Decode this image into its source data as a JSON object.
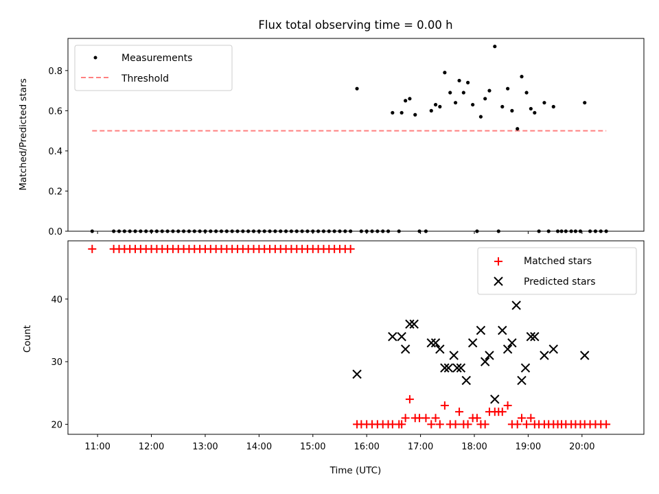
{
  "chart_data": [
    {
      "type": "scatter",
      "title": "Flux total observing time = 0.00 h",
      "ylabel": "Matched/Predicted stars",
      "xlabel": "",
      "xlim": [
        10.45,
        21.15
      ],
      "ylim": [
        0,
        0.96
      ],
      "yticks": [
        "0.0",
        "0.2",
        "0.4",
        "0.6",
        "0.8"
      ],
      "legend_position": "upper-left",
      "threshold": {
        "name": "Threshold",
        "value": 0.5,
        "x_start": 10.9,
        "x_end": 20.45,
        "color": "#ff7f7f"
      },
      "series": [
        {
          "name": "Measurements",
          "color": "#000000",
          "points": [
            [
              10.9,
              0
            ],
            [
              11.3,
              0
            ],
            [
              11.4,
              0
            ],
            [
              11.5,
              0
            ],
            [
              11.6,
              0
            ],
            [
              11.7,
              0
            ],
            [
              11.8,
              0
            ],
            [
              11.9,
              0
            ],
            [
              12.0,
              0
            ],
            [
              12.1,
              0
            ],
            [
              12.2,
              0
            ],
            [
              12.3,
              0
            ],
            [
              12.4,
              0
            ],
            [
              12.5,
              0
            ],
            [
              12.6,
              0
            ],
            [
              12.7,
              0
            ],
            [
              12.8,
              0
            ],
            [
              12.9,
              0
            ],
            [
              13.0,
              0
            ],
            [
              13.1,
              0
            ],
            [
              13.2,
              0
            ],
            [
              13.3,
              0
            ],
            [
              13.4,
              0
            ],
            [
              13.5,
              0
            ],
            [
              13.6,
              0
            ],
            [
              13.7,
              0
            ],
            [
              13.8,
              0
            ],
            [
              13.9,
              0
            ],
            [
              14.0,
              0
            ],
            [
              14.1,
              0
            ],
            [
              14.2,
              0
            ],
            [
              14.3,
              0
            ],
            [
              14.4,
              0
            ],
            [
              14.5,
              0
            ],
            [
              14.6,
              0
            ],
            [
              14.7,
              0
            ],
            [
              14.8,
              0
            ],
            [
              14.9,
              0
            ],
            [
              15.0,
              0
            ],
            [
              15.1,
              0
            ],
            [
              15.2,
              0
            ],
            [
              15.3,
              0
            ],
            [
              15.4,
              0
            ],
            [
              15.5,
              0
            ],
            [
              15.6,
              0
            ],
            [
              15.7,
              0
            ],
            [
              15.82,
              0.71
            ],
            [
              15.9,
              0
            ],
            [
              16.0,
              0
            ],
            [
              16.1,
              0
            ],
            [
              16.2,
              0
            ],
            [
              16.3,
              0
            ],
            [
              16.4,
              0
            ],
            [
              16.48,
              0.59
            ],
            [
              16.6,
              0
            ],
            [
              16.65,
              0.59
            ],
            [
              16.72,
              0.65
            ],
            [
              16.8,
              0.66
            ],
            [
              16.9,
              0.58
            ],
            [
              16.98,
              0
            ],
            [
              17.1,
              0
            ],
            [
              17.2,
              0.6
            ],
            [
              17.28,
              0.63
            ],
            [
              17.36,
              0.62
            ],
            [
              17.45,
              0.79
            ],
            [
              17.55,
              0.69
            ],
            [
              17.65,
              0.64
            ],
            [
              17.72,
              0.75
            ],
            [
              17.8,
              0.69
            ],
            [
              17.88,
              0.74
            ],
            [
              17.97,
              0.63
            ],
            [
              18.05,
              0
            ],
            [
              18.12,
              0.57
            ],
            [
              18.2,
              0.66
            ],
            [
              18.28,
              0.7
            ],
            [
              18.38,
              0.92
            ],
            [
              18.45,
              0
            ],
            [
              18.52,
              0.62
            ],
            [
              18.62,
              0.71
            ],
            [
              18.7,
              0.6
            ],
            [
              18.8,
              0.51
            ],
            [
              18.88,
              0.77
            ],
            [
              18.97,
              0.69
            ],
            [
              19.05,
              0.61
            ],
            [
              19.12,
              0.59
            ],
            [
              19.2,
              0
            ],
            [
              19.3,
              0.64
            ],
            [
              19.38,
              0
            ],
            [
              19.47,
              0.62
            ],
            [
              19.55,
              0
            ],
            [
              19.62,
              0
            ],
            [
              19.7,
              0
            ],
            [
              19.8,
              0
            ],
            [
              19.88,
              0
            ],
            [
              19.97,
              0
            ],
            [
              20.05,
              0.64
            ],
            [
              20.15,
              0
            ],
            [
              20.25,
              0
            ],
            [
              20.35,
              0
            ],
            [
              20.45,
              0
            ]
          ]
        }
      ]
    },
    {
      "type": "scatter",
      "title": "",
      "xlabel": "Time (UTC)",
      "ylabel": "Count",
      "xlim": [
        10.45,
        21.15
      ],
      "ylim": [
        18.4,
        49.3
      ],
      "yticks": [
        "20",
        "30",
        "40"
      ],
      "xticks": [
        "11:00",
        "12:00",
        "13:00",
        "14:00",
        "15:00",
        "16:00",
        "17:00",
        "18:00",
        "19:00",
        "20:00"
      ],
      "legend_position": "upper-right",
      "series": [
        {
          "name": "Matched stars",
          "color": "#ff0000",
          "marker": "plus",
          "points": [
            [
              10.9,
              48
            ],
            [
              11.3,
              48
            ],
            [
              11.4,
              48
            ],
            [
              11.5,
              48
            ],
            [
              11.6,
              48
            ],
            [
              11.7,
              48
            ],
            [
              11.8,
              48
            ],
            [
              11.9,
              48
            ],
            [
              12.0,
              48
            ],
            [
              12.1,
              48
            ],
            [
              12.2,
              48
            ],
            [
              12.3,
              48
            ],
            [
              12.4,
              48
            ],
            [
              12.5,
              48
            ],
            [
              12.6,
              48
            ],
            [
              12.7,
              48
            ],
            [
              12.8,
              48
            ],
            [
              12.9,
              48
            ],
            [
              13.0,
              48
            ],
            [
              13.1,
              48
            ],
            [
              13.2,
              48
            ],
            [
              13.3,
              48
            ],
            [
              13.4,
              48
            ],
            [
              13.5,
              48
            ],
            [
              13.6,
              48
            ],
            [
              13.7,
              48
            ],
            [
              13.8,
              48
            ],
            [
              13.9,
              48
            ],
            [
              14.0,
              48
            ],
            [
              14.1,
              48
            ],
            [
              14.2,
              48
            ],
            [
              14.3,
              48
            ],
            [
              14.4,
              48
            ],
            [
              14.5,
              48
            ],
            [
              14.6,
              48
            ],
            [
              14.7,
              48
            ],
            [
              14.8,
              48
            ],
            [
              14.9,
              48
            ],
            [
              15.0,
              48
            ],
            [
              15.1,
              48
            ],
            [
              15.2,
              48
            ],
            [
              15.3,
              48
            ],
            [
              15.4,
              48
            ],
            [
              15.5,
              48
            ],
            [
              15.6,
              48
            ],
            [
              15.7,
              48
            ],
            [
              15.82,
              20
            ],
            [
              15.9,
              20
            ],
            [
              16.0,
              20
            ],
            [
              16.1,
              20
            ],
            [
              16.2,
              20
            ],
            [
              16.3,
              20
            ],
            [
              16.4,
              20
            ],
            [
              16.48,
              20
            ],
            [
              16.6,
              20
            ],
            [
              16.65,
              20
            ],
            [
              16.72,
              21
            ],
            [
              16.8,
              24
            ],
            [
              16.9,
              21
            ],
            [
              16.98,
              21
            ],
            [
              17.1,
              21
            ],
            [
              17.2,
              20
            ],
            [
              17.28,
              21
            ],
            [
              17.36,
              20
            ],
            [
              17.45,
              23
            ],
            [
              17.55,
              20
            ],
            [
              17.65,
              20
            ],
            [
              17.72,
              22
            ],
            [
              17.8,
              20
            ],
            [
              17.88,
              20
            ],
            [
              17.97,
              21
            ],
            [
              18.05,
              21
            ],
            [
              18.12,
              20
            ],
            [
              18.2,
              20
            ],
            [
              18.28,
              22
            ],
            [
              18.38,
              22
            ],
            [
              18.45,
              22
            ],
            [
              18.52,
              22
            ],
            [
              18.62,
              23
            ],
            [
              18.7,
              20
            ],
            [
              18.8,
              20
            ],
            [
              18.88,
              21
            ],
            [
              18.97,
              20
            ],
            [
              19.05,
              21
            ],
            [
              19.12,
              20
            ],
            [
              19.2,
              20
            ],
            [
              19.3,
              20
            ],
            [
              19.38,
              20
            ],
            [
              19.47,
              20
            ],
            [
              19.55,
              20
            ],
            [
              19.62,
              20
            ],
            [
              19.7,
              20
            ],
            [
              19.8,
              20
            ],
            [
              19.88,
              20
            ],
            [
              19.97,
              20
            ],
            [
              20.05,
              20
            ],
            [
              20.15,
              20
            ],
            [
              20.25,
              20
            ],
            [
              20.35,
              20
            ],
            [
              20.45,
              20
            ]
          ]
        },
        {
          "name": "Predicted stars",
          "color": "#000000",
          "marker": "x",
          "points": [
            [
              15.82,
              28
            ],
            [
              16.48,
              34
            ],
            [
              16.65,
              34
            ],
            [
              16.72,
              32
            ],
            [
              16.8,
              36
            ],
            [
              16.88,
              36
            ],
            [
              17.2,
              33
            ],
            [
              17.28,
              33
            ],
            [
              17.36,
              32
            ],
            [
              17.45,
              29
            ],
            [
              17.52,
              29
            ],
            [
              17.62,
              31
            ],
            [
              17.68,
              29
            ],
            [
              17.75,
              29
            ],
            [
              17.85,
              27
            ],
            [
              17.97,
              33
            ],
            [
              18.12,
              35
            ],
            [
              18.2,
              30
            ],
            [
              18.28,
              31
            ],
            [
              18.38,
              24
            ],
            [
              18.52,
              35
            ],
            [
              18.62,
              32
            ],
            [
              18.7,
              33
            ],
            [
              18.78,
              39
            ],
            [
              18.88,
              27
            ],
            [
              18.95,
              29
            ],
            [
              19.05,
              34
            ],
            [
              19.12,
              34
            ],
            [
              19.3,
              31
            ],
            [
              19.47,
              32
            ],
            [
              20.05,
              31
            ]
          ]
        }
      ]
    }
  ]
}
